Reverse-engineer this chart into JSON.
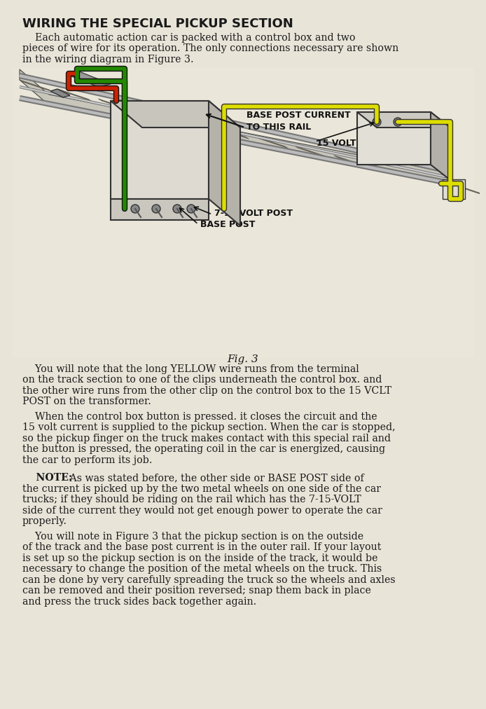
{
  "title": "WIRING THE SPECIAL PICKUP SECTION",
  "bg_color": "#e8e4d8",
  "text_color": "#1a1a1a",
  "title_fontsize": 13,
  "body_fontsize": 10.2,
  "fig_width": 6.75,
  "fig_height": 9.93,
  "paragraph1": "    Each automatic action car is packed with a control box and two\npieces of wire for its operation. The only connections necessary are shown\nin the wiring diagram in Figure 3.",
  "fig_caption": "Fig. 3",
  "paragraph2": "    You will note that the long YELLOW wire runs from the terminal\non the track section to one of the clips underneath the control box. and\nthe other wire runs from the other clip on the control box to the 15 VCLT\nPOST on the transformer.",
  "paragraph3": "    When the control box button is pressed. it closes the circuit and the\n15 volt current is supplied to the pickup section. When the car is stopped,\nso the pickup finger on the truck makes contact with this special rail and\nthe button is pressed, the operating coil in the car is energized, causing\nthe car to perform its job.",
  "paragraph4_bold": "    NOTE:",
  "paragraph4_rest": " As was stated before, the other side or BASE POST side of\nthe current is picked up by the two metal wheels on one side of the car\ntrucks; if they should be riding on the rail which has the 7-15-VOLT\nside of the current they would not get enough power to operate the car\nproperly.",
  "paragraph5": "    You will note in Figure 3 that the pickup section is on the outside\nof the track and the base post current is in the outer rail. If your layout\nis set up so the pickup section is on the inside of the track, it would be\nnecessary to change the position of the metal wheels on the truck. This\ncan be done by very carefully spreading the truck so the wheels and axles\ncan be removed and their position reversed; snap them back in place\nand press the truck sides back together again.",
  "wire_colors": {
    "yellow": "#dddd00",
    "red": "#cc2200",
    "green": "#228800"
  },
  "label_base_post_current": "BASE POST CURRENT\nTO THIS RAIL",
  "label_15volt": "15 VOLT POST",
  "label_715volt": "7-15 VOLT POST",
  "label_base_post": "BASE POST"
}
